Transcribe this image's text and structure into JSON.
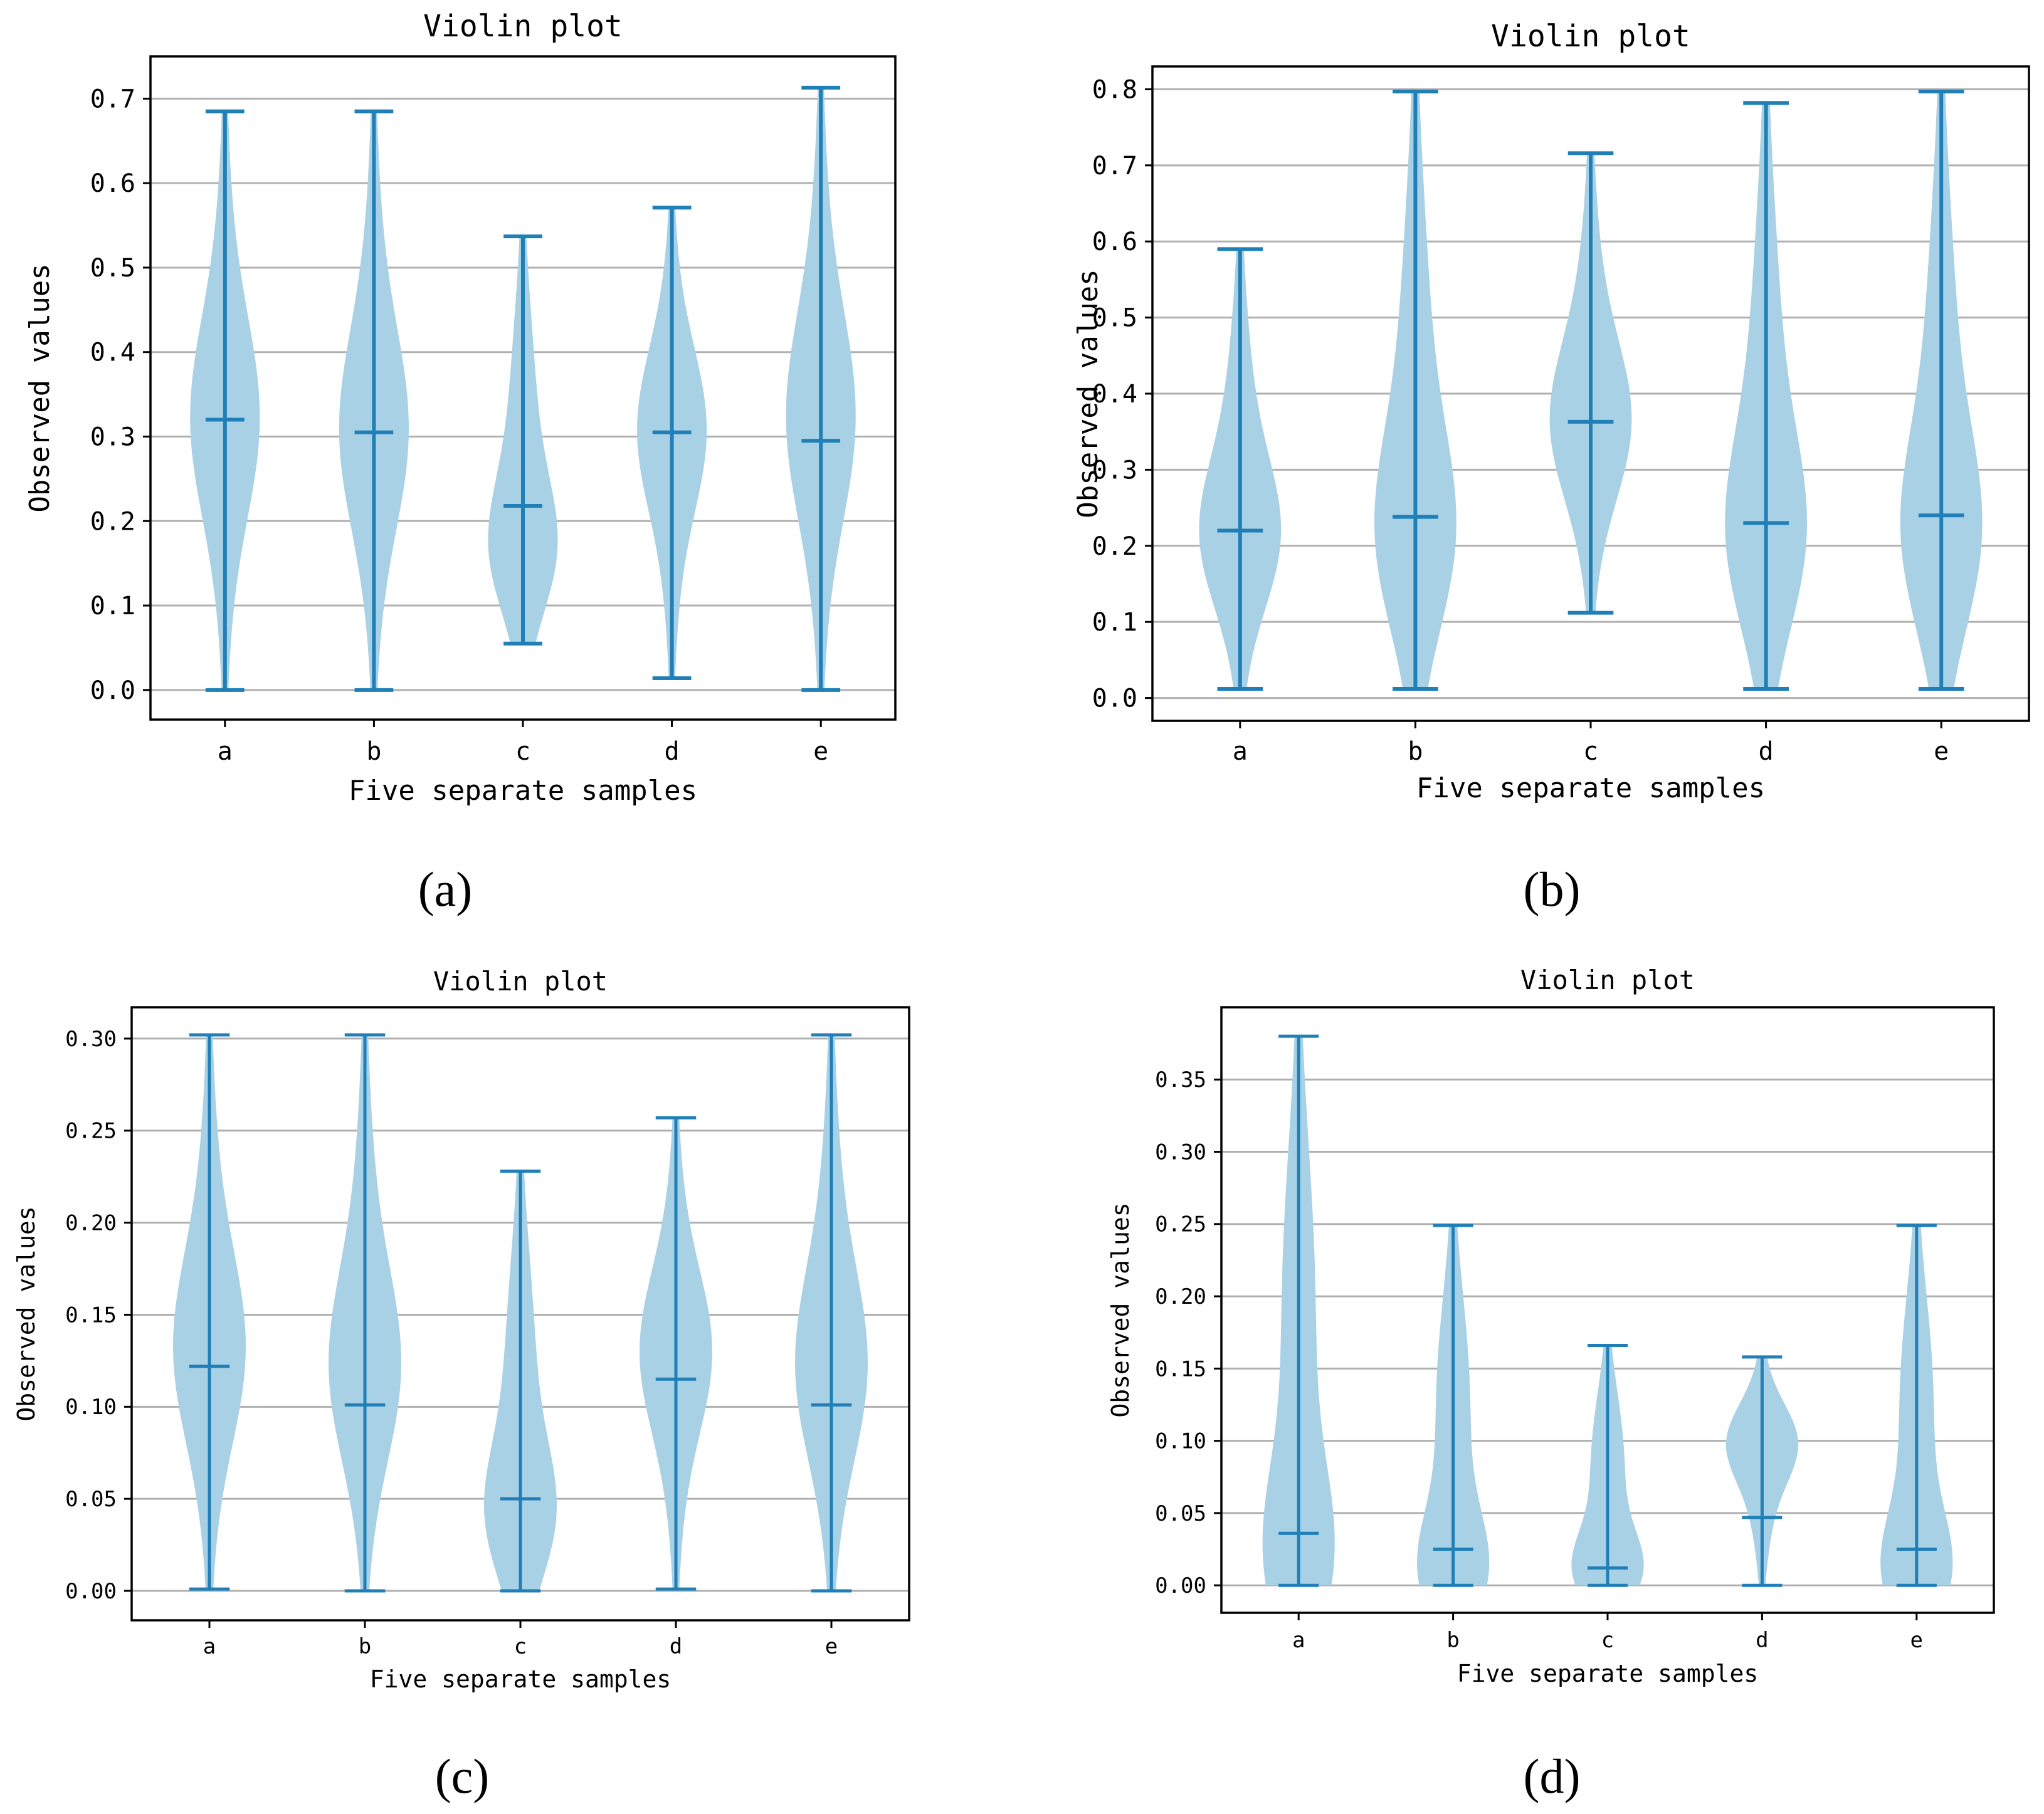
{
  "chart_data": [
    {
      "panel_label": "(a)",
      "type": "violin",
      "title": "Violin plot",
      "xlabel": "Five separate samples",
      "ylabel": "Observed values",
      "categories": [
        "a",
        "b",
        "c",
        "d",
        "e"
      ],
      "ylim": [
        -0.035,
        0.75
      ],
      "yticks": [
        0.0,
        0.1,
        0.2,
        0.3,
        0.4,
        0.5,
        0.6,
        0.7
      ],
      "ytick_labels": [
        "0.0",
        "0.1",
        "0.2",
        "0.3",
        "0.4",
        "0.5",
        "0.6",
        "0.7"
      ],
      "grid": "horizontal",
      "series": [
        {
          "name": "a",
          "min": 0.0,
          "max": 0.685,
          "median": 0.32,
          "mode": 0.32,
          "width": 0.85
        },
        {
          "name": "b",
          "min": 0.0,
          "max": 0.685,
          "median": 0.305,
          "mode": 0.305,
          "width": 0.85
        },
        {
          "name": "c",
          "min": 0.055,
          "max": 0.537,
          "median": 0.218,
          "mode": 0.165,
          "width": 0.85
        },
        {
          "name": "d",
          "min": 0.014,
          "max": 0.571,
          "median": 0.305,
          "mode": 0.31,
          "width": 0.85
        },
        {
          "name": "e",
          "min": 0.0,
          "max": 0.713,
          "median": 0.295,
          "mode": 0.32,
          "width": 0.85
        }
      ]
    },
    {
      "panel_label": "(b)",
      "type": "violin",
      "title": "Violin plot",
      "xlabel": "Five separate samples",
      "ylabel": "Observed values",
      "categories": [
        "a",
        "b",
        "c",
        "d",
        "e"
      ],
      "ylim": [
        -0.03,
        0.83
      ],
      "yticks": [
        0.0,
        0.1,
        0.2,
        0.3,
        0.4,
        0.5,
        0.6,
        0.7,
        0.8
      ],
      "ytick_labels": [
        "0.0",
        "0.1",
        "0.2",
        "0.3",
        "0.4",
        "0.5",
        "0.6",
        "0.7",
        "0.8"
      ],
      "grid": "horizontal",
      "series": [
        {
          "name": "a",
          "min": 0.012,
          "max": 0.59,
          "median": 0.22,
          "mode": 0.21,
          "width": 0.85
        },
        {
          "name": "b",
          "min": 0.012,
          "max": 0.797,
          "median": 0.238,
          "mode": 0.21,
          "width": 0.85
        },
        {
          "name": "c",
          "min": 0.112,
          "max": 0.716,
          "median": 0.363,
          "mode": 0.36,
          "width": 0.85
        },
        {
          "name": "d",
          "min": 0.012,
          "max": 0.782,
          "median": 0.23,
          "mode": 0.21,
          "width": 0.85
        },
        {
          "name": "e",
          "min": 0.012,
          "max": 0.797,
          "median": 0.24,
          "mode": 0.21,
          "width": 0.85
        }
      ]
    },
    {
      "panel_label": "(c)",
      "type": "violin",
      "title": "Violin plot",
      "xlabel": "Five separate samples",
      "ylabel": "Observed values",
      "categories": [
        "a",
        "b",
        "c",
        "d",
        "e"
      ],
      "ylim": [
        -0.016,
        0.317
      ],
      "yticks": [
        0.0,
        0.05,
        0.1,
        0.15,
        0.2,
        0.25,
        0.3
      ],
      "ytick_labels": [
        "0.00",
        "0.05",
        "0.10",
        "0.15",
        "0.20",
        "0.25",
        "0.30"
      ],
      "grid": "horizontal",
      "series": [
        {
          "name": "a",
          "min": 0.001,
          "max": 0.302,
          "median": 0.122,
          "mode": 0.13,
          "width": 0.85
        },
        {
          "name": "b",
          "min": 0.0,
          "max": 0.302,
          "median": 0.101,
          "mode": 0.12,
          "width": 0.85
        },
        {
          "name": "c",
          "min": 0.0,
          "max": 0.228,
          "median": 0.05,
          "mode": 0.04,
          "width": 0.85
        },
        {
          "name": "d",
          "min": 0.001,
          "max": 0.257,
          "median": 0.115,
          "mode": 0.13,
          "width": 0.85
        },
        {
          "name": "e",
          "min": 0.0,
          "max": 0.302,
          "median": 0.101,
          "mode": 0.12,
          "width": 0.85
        }
      ]
    },
    {
      "panel_label": "(d)",
      "type": "violin",
      "title": "Violin plot",
      "xlabel": "Five separate samples",
      "ylabel": "Observed values",
      "categories": [
        "a",
        "b",
        "c",
        "d",
        "e"
      ],
      "ylim": [
        -0.019,
        0.4
      ],
      "yticks": [
        0.0,
        0.05,
        0.1,
        0.15,
        0.2,
        0.25,
        0.3,
        0.35
      ],
      "ytick_labels": [
        "0.00",
        "0.05",
        "0.10",
        "0.15",
        "0.20",
        "0.25",
        "0.30",
        "0.35"
      ],
      "grid": "horizontal",
      "series": [
        {
          "name": "a",
          "min": 0.0,
          "max": 0.38,
          "median": 0.036,
          "mode": 0.02,
          "width": 0.85
        },
        {
          "name": "b",
          "min": 0.0,
          "max": 0.249,
          "median": 0.025,
          "mode": 0.01,
          "width": 0.85
        },
        {
          "name": "c",
          "min": 0.0,
          "max": 0.166,
          "median": 0.012,
          "mode": 0.01,
          "width": 0.85
        },
        {
          "name": "d",
          "min": 0.0,
          "max": 0.158,
          "median": 0.047,
          "mode": 0.1,
          "width": 0.85
        },
        {
          "name": "e",
          "min": 0.0,
          "max": 0.249,
          "median": 0.025,
          "mode": 0.01,
          "width": 0.85
        }
      ]
    }
  ],
  "colors": {
    "violin_fill": "#a9d1e6",
    "whisker": "#1f7fb6",
    "grid": "#b0b0b0",
    "axes": "#000000"
  }
}
